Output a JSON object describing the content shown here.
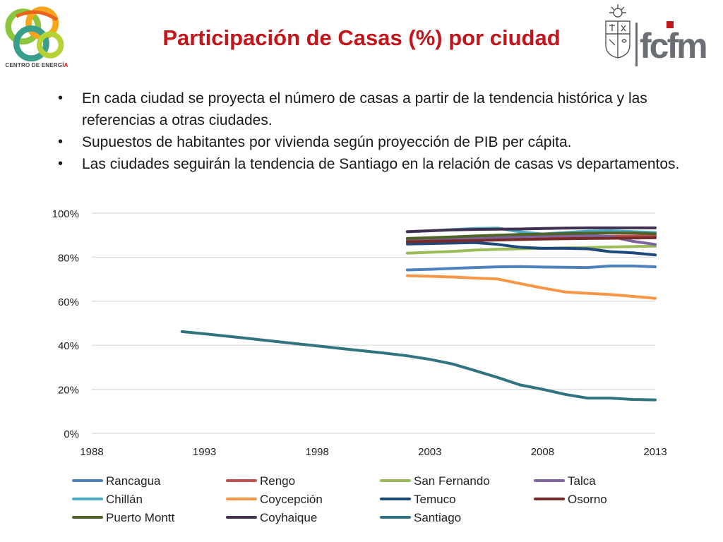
{
  "header": {
    "title": "Participación de Casas (%) por ciudad",
    "logo_left_text": "CENTRO DE ENERG",
    "logo_left_text_accent": "ÍA",
    "logo_right_text": "fcfm"
  },
  "bullets": [
    "En cada ciudad se proyecta el número de casas a partir de la tendencia histórica y las referencias a otras  ciudades.",
    "Supuestos de habitantes por vivienda según proyección de PIB per cápita.",
    "Las ciudades seguirán la tendencia de Santiago en la relación de casas vs departamentos."
  ],
  "colors": {
    "title": "#c0161c",
    "logo_right": "#6b6f75",
    "gridline": "#d9d9d9"
  },
  "chart_data": {
    "type": "line",
    "title": "",
    "xlabel": "",
    "ylabel": "",
    "xlim": [
      1988,
      2013
    ],
    "ylim": [
      0,
      100
    ],
    "x_ticks": [
      1988,
      1993,
      1998,
      2003,
      2008,
      2013
    ],
    "y_ticks": [
      0,
      20,
      40,
      60,
      80,
      100
    ],
    "y_tick_labels": [
      "0%",
      "20%",
      "40%",
      "60%",
      "80%",
      "100%"
    ],
    "grid": "horizontal",
    "legend_position": "bottom",
    "series": [
      {
        "name": "Rancagua",
        "color": "#4f81bd",
        "x": [
          2002,
          2003,
          2004,
          2005,
          2006,
          2007,
          2008,
          2009,
          2010,
          2011,
          2012,
          2013
        ],
        "y": [
          74.2,
          74.5,
          74.9,
          75.3,
          75.6,
          75.7,
          75.5,
          75.4,
          75.3,
          76.0,
          76.0,
          75.6
        ]
      },
      {
        "name": "Rengo",
        "color": "#c0504d",
        "x": [
          2002,
          2003,
          2004,
          2005,
          2006,
          2007,
          2008,
          2009,
          2010,
          2011,
          2012,
          2013
        ],
        "y": [
          88.0,
          88.2,
          88.4,
          88.6,
          88.8,
          89.0,
          89.2,
          89.3,
          89.4,
          89.5,
          89.6,
          89.6
        ]
      },
      {
        "name": "San Fernando",
        "color": "#9bbb59",
        "x": [
          2002,
          2003,
          2004,
          2005,
          2006,
          2007,
          2008,
          2009,
          2010,
          2011,
          2012,
          2013
        ],
        "y": [
          81.8,
          82.2,
          82.6,
          83.2,
          83.6,
          83.8,
          84.0,
          84.2,
          84.4,
          84.6,
          84.8,
          85.0
        ]
      },
      {
        "name": "Talca",
        "color": "#8064a2",
        "x": [
          2002,
          2003,
          2004,
          2005,
          2006,
          2007,
          2008,
          2009,
          2010,
          2011,
          2012,
          2013
        ],
        "y": [
          87.2,
          87.6,
          88.0,
          88.5,
          89.0,
          89.3,
          89.6,
          89.8,
          89.9,
          89.4,
          87.2,
          85.8
        ]
      },
      {
        "name": "Chillán",
        "color": "#4bacc6",
        "x": [
          2002,
          2003,
          2004,
          2005,
          2006,
          2007,
          2008,
          2009,
          2010,
          2011,
          2012,
          2013
        ],
        "y": [
          91.5,
          92.0,
          92.5,
          93.0,
          93.2,
          91.5,
          90.5,
          91.2,
          91.8,
          92.0,
          91.6,
          91.2
        ]
      },
      {
        "name": "Coycepción",
        "color": "#f79646",
        "x": [
          2002,
          2003,
          2004,
          2005,
          2006,
          2007,
          2008,
          2009,
          2010,
          2011,
          2012,
          2013
        ],
        "y": [
          71.6,
          71.3,
          71.0,
          70.5,
          70.1,
          68.0,
          66.0,
          64.2,
          63.6,
          63.0,
          62.2,
          61.3
        ]
      },
      {
        "name": "Temuco",
        "color": "#1f497d",
        "x": [
          2002,
          2003,
          2004,
          2005,
          2006,
          2007,
          2008,
          2009,
          2010,
          2011,
          2012,
          2013
        ],
        "y": [
          86.0,
          86.2,
          86.4,
          86.6,
          85.8,
          84.5,
          84.0,
          84.0,
          83.8,
          82.5,
          82.0,
          81.0
        ]
      },
      {
        "name": "Osorno",
        "color": "#772c2a",
        "x": [
          2002,
          2003,
          2004,
          2005,
          2006,
          2007,
          2008,
          2009,
          2010,
          2011,
          2012,
          2013
        ],
        "y": [
          87.0,
          87.2,
          87.4,
          87.6,
          87.8,
          88.0,
          88.2,
          88.4,
          88.5,
          88.6,
          88.7,
          88.8
        ]
      },
      {
        "name": "Puerto Montt",
        "color": "#4f6228",
        "x": [
          2002,
          2003,
          2004,
          2005,
          2006,
          2007,
          2008,
          2009,
          2010,
          2011,
          2012,
          2013
        ],
        "y": [
          88.5,
          88.8,
          89.2,
          89.6,
          90.0,
          90.3,
          90.5,
          90.7,
          90.9,
          91.0,
          91.0,
          90.6
        ]
      },
      {
        "name": "Coyhaique",
        "color": "#403151",
        "x": [
          2002,
          2003,
          2004,
          2005,
          2006,
          2007,
          2008,
          2009,
          2010,
          2011,
          2012,
          2013
        ],
        "y": [
          91.6,
          92.0,
          92.4,
          92.6,
          92.7,
          92.8,
          93.0,
          93.2,
          93.3,
          93.3,
          93.3,
          93.3
        ]
      },
      {
        "name": "Santiago",
        "color": "#31737f",
        "x": [
          1992,
          1993,
          1994,
          1995,
          1996,
          1997,
          1998,
          1999,
          2000,
          2001,
          2002,
          2003,
          2004,
          2005,
          2006,
          2007,
          2008,
          2009,
          2010,
          2011,
          2012,
          2013
        ],
        "y": [
          46.2,
          45.2,
          44.1,
          43.0,
          41.9,
          40.8,
          39.7,
          38.6,
          37.5,
          36.4,
          35.2,
          33.6,
          31.5,
          28.5,
          25.4,
          22.0,
          20.0,
          17.7,
          16.0,
          16.0,
          15.4,
          15.2
        ]
      }
    ]
  }
}
